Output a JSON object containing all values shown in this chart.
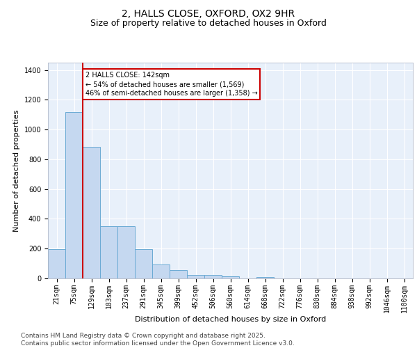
{
  "title_line1": "2, HALLS CLOSE, OXFORD, OX2 9HR",
  "title_line2": "Size of property relative to detached houses in Oxford",
  "xlabel": "Distribution of detached houses by size in Oxford",
  "ylabel": "Number of detached properties",
  "categories": [
    "21sqm",
    "75sqm",
    "129sqm",
    "183sqm",
    "237sqm",
    "291sqm",
    "345sqm",
    "399sqm",
    "452sqm",
    "506sqm",
    "560sqm",
    "614sqm",
    "668sqm",
    "722sqm",
    "776sqm",
    "830sqm",
    "884sqm",
    "938sqm",
    "992sqm",
    "1046sqm",
    "1100sqm"
  ],
  "values": [
    195,
    1120,
    885,
    350,
    350,
    195,
    95,
    58,
    25,
    22,
    16,
    0,
    10,
    0,
    0,
    0,
    0,
    0,
    0,
    0,
    0
  ],
  "bar_color": "#c5d8f0",
  "bar_edge_color": "#6aaad4",
  "vline_x_index": 2,
  "vline_color": "#cc0000",
  "annotation_text": "2 HALLS CLOSE: 142sqm\n← 54% of detached houses are smaller (1,569)\n46% of semi-detached houses are larger (1,358) →",
  "annotation_box_color": "#cc0000",
  "ylim": [
    0,
    1450
  ],
  "yticks": [
    0,
    200,
    400,
    600,
    800,
    1000,
    1200,
    1400
  ],
  "background_color": "#e8f0fa",
  "grid_color": "#ffffff",
  "footer_text": "Contains HM Land Registry data © Crown copyright and database right 2025.\nContains public sector information licensed under the Open Government Licence v3.0.",
  "title_fontsize": 10,
  "subtitle_fontsize": 9,
  "axis_label_fontsize": 8,
  "tick_fontsize": 7,
  "annotation_fontsize": 7,
  "footer_fontsize": 6.5
}
